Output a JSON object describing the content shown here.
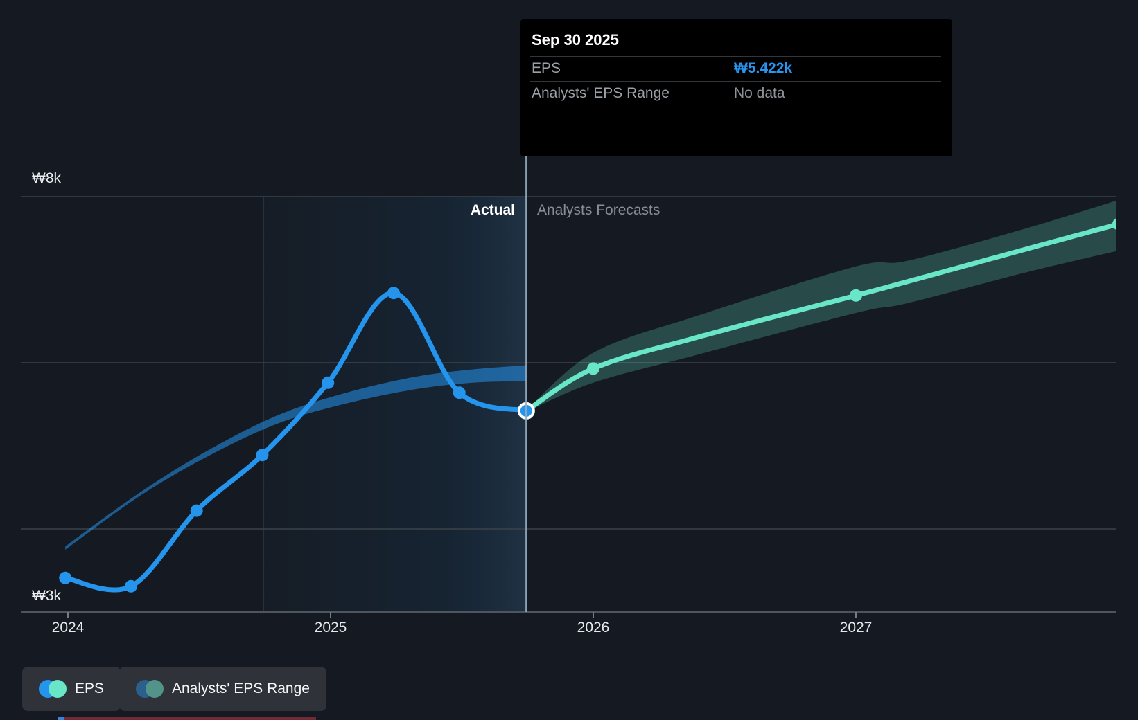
{
  "tooltip": {
    "title": "Sep 30 2025",
    "rows": [
      {
        "label": "EPS",
        "value": "₩5.422k"
      },
      {
        "label": "Analysts' EPS Range",
        "value": "No data"
      }
    ]
  },
  "axes": {
    "y_top_label": "₩8k",
    "y_bottom_label": "₩3k",
    "x_ticks": [
      {
        "label": "2024",
        "year": 2024
      },
      {
        "label": "2025",
        "year": 2025
      },
      {
        "label": "2026",
        "year": 2026
      },
      {
        "label": "2027",
        "year": 2027
      }
    ]
  },
  "sections": {
    "actual_label": "Actual",
    "forecast_label": "Analysts Forecasts"
  },
  "legend": [
    {
      "label": "EPS",
      "dot_colors": [
        "#2494ec",
        "#69e5c8"
      ]
    },
    {
      "label": "Analysts' EPS Range",
      "dot_colors": [
        "#2b5f8c",
        "#52948a"
      ]
    }
  ],
  "colors": {
    "background": "#151a22",
    "eps_actual_line": "#2494ec",
    "eps_forecast_line": "#69e5c8",
    "forecast_band_fill": "rgba(105,229,200,0.24)",
    "past_estimate_band_fill": "rgba(36,148,236,0.55)",
    "gridline": "#3c424a",
    "axis_line": "#4f555d",
    "tick_mark": "#767c83",
    "divider_line": "rgba(148,172,192,0.9)",
    "year_marker_line": "rgba(130,165,210,0.16)",
    "current_dot_ring": "#ffffff",
    "tooltip_accent": "#2796f0"
  },
  "chart_data": {
    "type": "line",
    "unit": "KRW per share, thousands (k)",
    "ylim_k": [
      3,
      8
    ],
    "y_gridlines_k": [
      8,
      6,
      4
    ],
    "y_axis_bottom_k": 3,
    "x_range_years": [
      2023.82,
      2028.0
    ],
    "divider_year": 2025.745,
    "divider_date": "Sep 30 2025",
    "current_point_k": [
      2025.745,
      5.422
    ],
    "highlight_span_years": [
      2024.745,
      2025.745
    ],
    "series": [
      {
        "name": "EPS (actual)",
        "points_k": [
          [
            2023.99,
            3.41
          ],
          [
            2024.24,
            3.31
          ],
          [
            2024.49,
            4.22
          ],
          [
            2024.74,
            4.89
          ],
          [
            2024.99,
            5.76
          ],
          [
            2025.24,
            6.84
          ],
          [
            2025.49,
            5.64
          ],
          [
            2025.745,
            5.422
          ]
        ],
        "marker_years": [
          2023.99,
          2024.24,
          2024.49,
          2024.74,
          2024.99,
          2025.24,
          2025.49
        ]
      },
      {
        "name": "EPS (analysts forecast)",
        "points_k": [
          [
            2025.745,
            5.422
          ],
          [
            2026.0,
            5.93
          ],
          [
            2026.4,
            6.31
          ],
          [
            2027.0,
            6.81
          ],
          [
            2027.2,
            6.98
          ],
          [
            2027.65,
            7.37
          ],
          [
            2028.0,
            7.67
          ]
        ],
        "marker_years": [
          2026.0,
          2027.0,
          2028.0
        ]
      }
    ],
    "bands": [
      {
        "name": "past analysts estimate (blue)",
        "points_k": [
          [
            2023.99,
            3.79,
            3.75
          ],
          [
            2024.27,
            4.43,
            4.39
          ],
          [
            2024.53,
            4.94,
            4.87
          ],
          [
            2024.8,
            5.37,
            5.27
          ],
          [
            2025.06,
            5.64,
            5.51
          ],
          [
            2025.32,
            5.83,
            5.68
          ],
          [
            2025.54,
            5.92,
            5.76
          ],
          [
            2025.745,
            5.97,
            5.78
          ]
        ]
      },
      {
        "name": "analysts EPS range (teal)",
        "points_k": [
          [
            2025.745,
            5.43,
            5.41
          ],
          [
            2026.0,
            6.12,
            5.76
          ],
          [
            2026.4,
            6.57,
            6.1
          ],
          [
            2027.0,
            7.16,
            6.6
          ],
          [
            2027.2,
            7.23,
            6.72
          ],
          [
            2027.65,
            7.62,
            7.09
          ],
          [
            2028.0,
            7.96,
            7.35
          ]
        ]
      }
    ]
  }
}
